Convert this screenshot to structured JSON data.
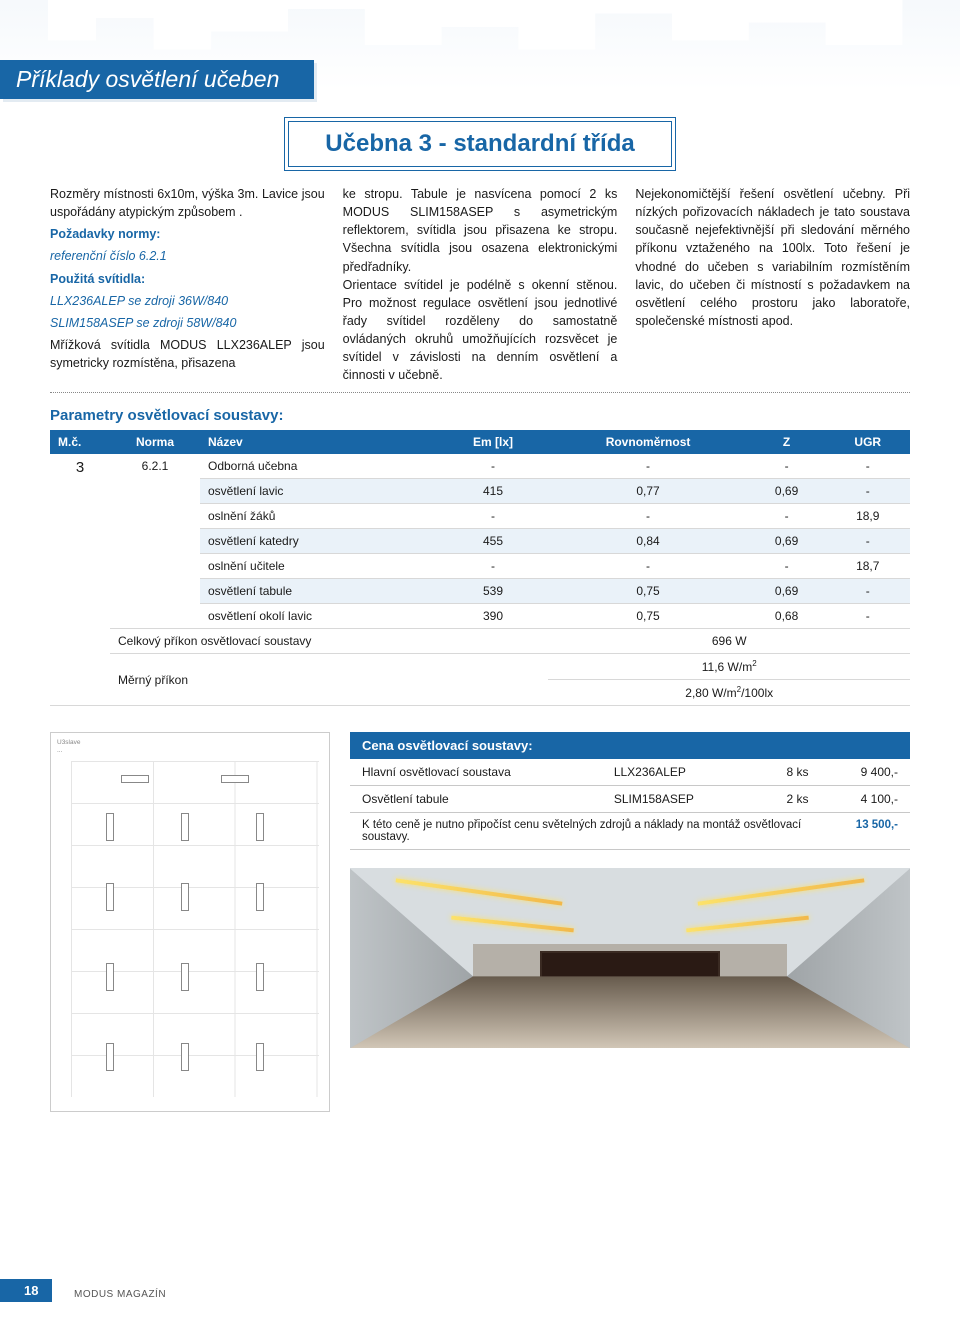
{
  "header": {
    "section_title": "Příklady osvětlení učeben",
    "subtitle": "Učebna 3 - standardní třída"
  },
  "columns": {
    "col1": {
      "dims": "Rozměry místnosti 6x10m, výška 3m. Lavice jsou uspořádány atypickým způsobem .",
      "req_label": "Požadavky normy:",
      "req_ref": "referenční číslo 6.2.1",
      "fixtures_label": "Použitá svítidla:",
      "fixture_a": "LLX236ALEP se zdroji 36W/840",
      "fixture_b": "SLIM158ASEP se zdroji 58W/840",
      "desc_bottom": "Mřížková svítidla MODUS LLX236ALEP jsou symetricky rozmístěna, přisazena"
    },
    "col2": "ke stropu. Tabule je nasvícena pomocí 2 ks MODUS SLIM158ASEP s asymetrickým reflektorem, svítidla jsou přisazena ke stropu. Všechna svítidla jsou osazena elektronickými předřadníky.\nOrientace svítidel je podélně s okenní stěnou. Pro možnost regulace osvětlení jsou jednotlivé řady svítidel rozděleny do samostatně ovládaných okruhů umožňujících rozsvěcet je svítidel v závislosti na denním osvětlení a činnosti v učebně.",
    "col3": "Nejekonomičtější řešení osvětlení učebny. Při nízkých pořizovacích nákladech je tato soustava současně nejefektivnější při sledování měrného příkonu vztaženého na 100lx. Toto řešení je vhodné do učeben s variabilním rozmístěním lavic, do učeben či místností s požadavkem na osvětlení celého prostoru jako laboratoře, společenské místnosti apod."
  },
  "params": {
    "title": "Parametry osvětlovací soustavy:",
    "headers": [
      "M.č.",
      "Norma",
      "Název",
      "Em [lx]",
      "Rovnoměrnost",
      "Z",
      "UGR"
    ],
    "mc": "3",
    "norma": "6.2.1",
    "rows": [
      {
        "name": "Odborná učebna",
        "em": "-",
        "rov": "-",
        "z": "-",
        "ugr": "-",
        "hl": false
      },
      {
        "name": "osvětlení lavic",
        "em": "415",
        "rov": "0,77",
        "z": "0,69",
        "ugr": "-",
        "hl": true
      },
      {
        "name": "oslnění žáků",
        "em": "-",
        "rov": "-",
        "z": "-",
        "ugr": "18,9",
        "hl": false
      },
      {
        "name": "osvětlení katedry",
        "em": "455",
        "rov": "0,84",
        "z": "0,69",
        "ugr": "-",
        "hl": true
      },
      {
        "name": "oslnění učitele",
        "em": "-",
        "rov": "-",
        "z": "-",
        "ugr": "18,7",
        "hl": false
      },
      {
        "name": "osvětlení tabule",
        "em": "539",
        "rov": "0,75",
        "z": "0,69",
        "ugr": "-",
        "hl": true
      },
      {
        "name": "osvětlení okolí lavic",
        "em": "390",
        "rov": "0,75",
        "z": "0,68",
        "ugr": "-",
        "hl": false
      }
    ],
    "total_power_label": "Celkový příkon osvětlovací soustavy",
    "total_power": "696 W",
    "spec_power_label": "Měrný příkon",
    "spec_power_1": "11,6 W/m²",
    "spec_power_2": "2,80 W/m²/100lx"
  },
  "price": {
    "header": "Cena osvětlovací soustavy:",
    "rows": [
      {
        "label": "Hlavní osvětlovací soustava",
        "model": "LLX236ALEP",
        "qty": "8 ks",
        "price": "9 400,-"
      },
      {
        "label": "Osvětlení tabule",
        "model": "SLIM158ASEP",
        "qty": "2 ks",
        "price": "4 100,-"
      }
    ],
    "note": "K této ceně je nutno připočíst cenu světelných zdrojů a náklady na montáž osvětlovací soustavy.",
    "total": "13 500,-"
  },
  "footer": {
    "page": "18",
    "magazine": "MODUS MAGAZÍN"
  },
  "colors": {
    "brand": "#1866a6",
    "row_hl": "#eaf2f9"
  }
}
